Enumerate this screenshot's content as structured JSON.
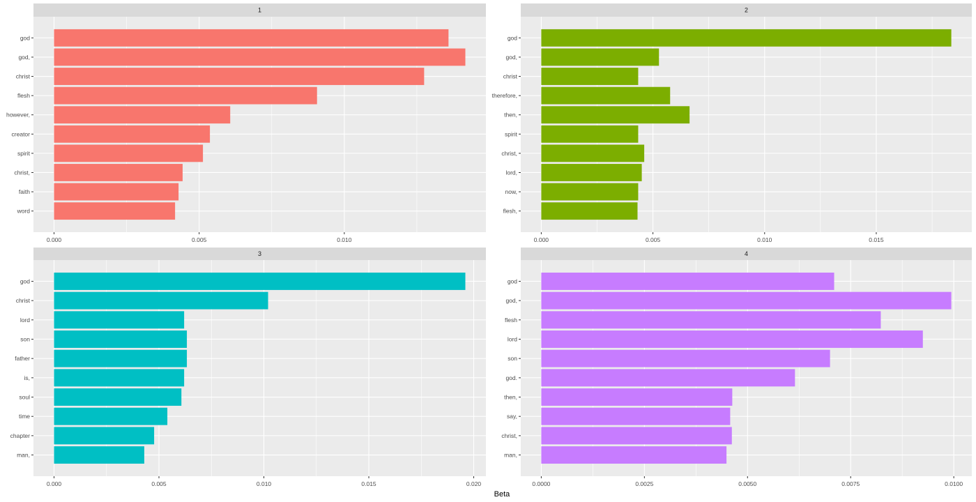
{
  "chart_data": {
    "type": "bar",
    "orientation": "horizontal",
    "xlabel": "Beta",
    "ylabel": "",
    "grid": true,
    "facets": [
      {
        "title": "1",
        "color": "#F8766D",
        "categories": [
          "god",
          "god,",
          "christ",
          "flesh",
          "however,",
          "creator",
          "spirit",
          "christ,",
          "faith",
          "word"
        ],
        "values": [
          0.01359,
          0.01417,
          0.01275,
          0.00906,
          0.00607,
          0.00537,
          0.00513,
          0.00443,
          0.00429,
          0.00417
        ],
        "ticks": [
          0.0,
          0.005,
          0.01
        ],
        "tick_labels": [
          "0.000",
          "0.005",
          "0.010"
        ]
      },
      {
        "title": "2",
        "color": "#7CAE00",
        "categories": [
          "god",
          "god,",
          "christ",
          "therefore,",
          "then,",
          "spirit",
          "christ,",
          "lord,",
          "now,",
          "flesh,"
        ],
        "values": [
          0.01836,
          0.00527,
          0.00434,
          0.00577,
          0.00664,
          0.00434,
          0.00461,
          0.0045,
          0.00434,
          0.00431
        ],
        "ticks": [
          0.0,
          0.005,
          0.01,
          0.015
        ],
        "tick_labels": [
          "0.000",
          "0.005",
          "0.010",
          "0.015"
        ]
      },
      {
        "title": "3",
        "color": "#00BFC4",
        "categories": [
          "god",
          "christ",
          "lord",
          "son",
          "father",
          "is,",
          "soul",
          "time",
          "chapter",
          "man,"
        ],
        "values": [
          0.0196,
          0.0102,
          0.0062,
          0.00633,
          0.00633,
          0.0062,
          0.00607,
          0.0054,
          0.00477,
          0.0043
        ],
        "ticks": [
          0.0,
          0.005,
          0.01,
          0.015,
          0.02
        ],
        "tick_labels": [
          "0.000",
          "0.005",
          "0.010",
          "0.015",
          "0.020"
        ]
      },
      {
        "title": "4",
        "color": "#C77CFF",
        "categories": [
          "god",
          "god,",
          "flesh",
          "lord",
          "son",
          "god.",
          "then,",
          "say,",
          "christ,",
          "man,"
        ],
        "values": [
          0.0071,
          0.00994,
          0.00823,
          0.00925,
          0.007,
          0.00615,
          0.00463,
          0.00458,
          0.00462,
          0.00449
        ],
        "ticks": [
          0.0,
          0.0025,
          0.005,
          0.0075,
          0.01
        ],
        "tick_labels": [
          "0.0000",
          "0.0025",
          "0.0050",
          "0.0075",
          "0.0100"
        ]
      }
    ]
  }
}
